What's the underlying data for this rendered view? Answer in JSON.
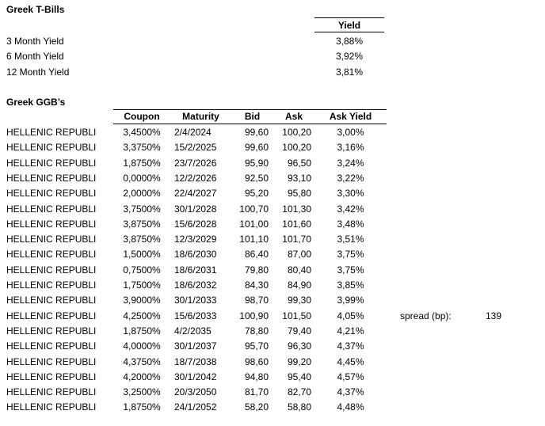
{
  "page": {
    "background_color": "#ffffff",
    "text_color": "#000000"
  },
  "tbills": {
    "title": "Greek T-Bills",
    "column_header": "Yield",
    "rows": [
      {
        "label": "3 Month Yield",
        "value": "3,88%"
      },
      {
        "label": "6 Month Yield",
        "value": "3,92%"
      },
      {
        "label": "12 Month Yield",
        "value": "3,81%"
      }
    ]
  },
  "ggbs": {
    "title": "Greek GGB’s",
    "issuer_label": "HELLENIC REPUBLI",
    "columns": [
      "Coupon",
      "Maturity",
      "Bid",
      "Ask",
      "Ask Yield"
    ],
    "rows": [
      {
        "coupon": "3,4500%",
        "maturity": "2/4/2024",
        "bid": "99,60",
        "ask": "100,20",
        "ask_yield": "3,00%"
      },
      {
        "coupon": "3,3750%",
        "maturity": "15/2/2025",
        "bid": "99,60",
        "ask": "100,20",
        "ask_yield": "3,16%"
      },
      {
        "coupon": "1,8750%",
        "maturity": "23/7/2026",
        "bid": "95,90",
        "ask": "96,50",
        "ask_yield": "3,24%"
      },
      {
        "coupon": "0,0000%",
        "maturity": "12/2/2026",
        "bid": "92,50",
        "ask": "93,10",
        "ask_yield": "3,22%"
      },
      {
        "coupon": "2,0000%",
        "maturity": "22/4/2027",
        "bid": "95,20",
        "ask": "95,80",
        "ask_yield": "3,30%"
      },
      {
        "coupon": "3,7500%",
        "maturity": "30/1/2028",
        "bid": "100,70",
        "ask": "101,30",
        "ask_yield": "3,42%"
      },
      {
        "coupon": "3,8750%",
        "maturity": "15/6/2028",
        "bid": "101,00",
        "ask": "101,60",
        "ask_yield": "3,48%"
      },
      {
        "coupon": "3,8750%",
        "maturity": "12/3/2029",
        "bid": "101,10",
        "ask": "101,70",
        "ask_yield": "3,51%"
      },
      {
        "coupon": "1,5000%",
        "maturity": "18/6/2030",
        "bid": "86,40",
        "ask": "87,00",
        "ask_yield": "3,75%"
      },
      {
        "coupon": "0,7500%",
        "maturity": "18/6/2031",
        "bid": "79,80",
        "ask": "80,40",
        "ask_yield": "3,75%"
      },
      {
        "coupon": "1,7500%",
        "maturity": "18/6/2032",
        "bid": "84,30",
        "ask": "84,90",
        "ask_yield": "3,85%"
      },
      {
        "coupon": "3,9000%",
        "maturity": "30/1/2033",
        "bid": "98,70",
        "ask": "99,30",
        "ask_yield": "3,99%"
      },
      {
        "coupon": "4,2500%",
        "maturity": "15/6/2033",
        "bid": "100,90",
        "ask": "101,50",
        "ask_yield": "4,05%"
      },
      {
        "coupon": "1,8750%",
        "maturity": "4/2/2035",
        "bid": "78,80",
        "ask": "79,40",
        "ask_yield": "4,21%"
      },
      {
        "coupon": "4,0000%",
        "maturity": "30/1/2037",
        "bid": "95,70",
        "ask": "96,30",
        "ask_yield": "4,37%"
      },
      {
        "coupon": "4,3750%",
        "maturity": "18/7/2038",
        "bid": "98,60",
        "ask": "99,20",
        "ask_yield": "4,45%"
      },
      {
        "coupon": "4,2000%",
        "maturity": "30/1/2042",
        "bid": "94,80",
        "ask": "95,40",
        "ask_yield": "4,57%"
      },
      {
        "coupon": "3,2500%",
        "maturity": "20/3/2050",
        "bid": "81,70",
        "ask": "82,70",
        "ask_yield": "4,37%"
      },
      {
        "coupon": "1,8750%",
        "maturity": "24/1/2052",
        "bid": "58,20",
        "ask": "58,80",
        "ask_yield": "4,48%"
      }
    ]
  },
  "spread": {
    "label": "spread (bp):",
    "value": "139"
  }
}
